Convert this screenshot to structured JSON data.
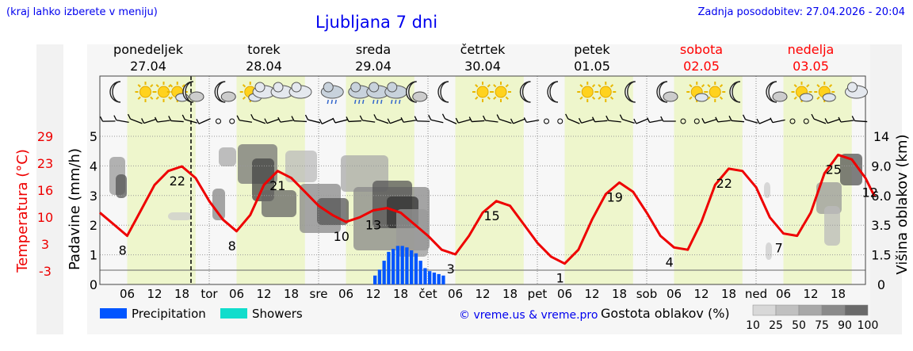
{
  "header": {
    "left_note": "(kraj lahko izberete v meniju)",
    "title": "Ljubljana 7 dni",
    "updated": "Zadnja posodobitev: 27.04.2026 - 20:04"
  },
  "days": [
    {
      "name": "ponedeljek",
      "date": "27.04",
      "abbr": "",
      "weekend": false
    },
    {
      "name": "torek",
      "date": "28.04",
      "abbr": "tor",
      "weekend": false
    },
    {
      "name": "sreda",
      "date": "29.04",
      "abbr": "sre",
      "weekend": false
    },
    {
      "name": "četrtek",
      "date": "30.04",
      "abbr": "čet",
      "weekend": false
    },
    {
      "name": "petek",
      "date": "01.05",
      "abbr": "pet",
      "weekend": false
    },
    {
      "name": "sobota",
      "date": "02.05",
      "abbr": "sob",
      "weekend": true
    },
    {
      "name": "nedelja",
      "date": "03.05",
      "abbr": "ned",
      "weekend": true
    }
  ],
  "hour_ticks": [
    "06",
    "12",
    "18"
  ],
  "axes": {
    "temperature_label": "Temperatura (°C)",
    "temperature_ticks": [
      "29",
      "23",
      "16",
      "10",
      "3",
      "-3"
    ],
    "precip_label": "Padavine (mm/h)",
    "precip_ticks": [
      "5",
      "4",
      "3",
      "2",
      "1",
      "0"
    ],
    "cloud_height_label": "Višina oblakov (km)",
    "cloud_height_ticks": [
      "14",
      "9.0",
      "6.0",
      "3.5",
      "1.5",
      "0"
    ]
  },
  "legend": {
    "precipitation": "Precipitation",
    "showers": "Showers",
    "credit": "© vreme.us & vreme.pro",
    "cloud_density_label": "Gostota oblakov (%)",
    "cloud_density_steps": [
      "10",
      "25",
      "50",
      "75",
      "90",
      "100"
    ]
  },
  "colors": {
    "title": "#0000ee",
    "weekend": "#ff0000",
    "temperature": "#ee0000",
    "precipitation": "#0055ff",
    "showers": "#11ddcc",
    "daylight": "#eef6cc",
    "night": "#f7f7f7"
  },
  "chart_data": {
    "type": "line",
    "x_unit": "hours since 27.04 00:00",
    "temperature": {
      "name": "Temperatura (°C)",
      "points": [
        [
          0,
          12.5
        ],
        [
          3,
          10
        ],
        [
          6,
          7.5
        ],
        [
          9,
          13
        ],
        [
          12,
          18.5
        ],
        [
          15,
          21.5
        ],
        [
          18,
          22.5
        ],
        [
          21,
          20
        ],
        [
          24,
          15
        ],
        [
          27,
          11
        ],
        [
          30,
          8.5
        ],
        [
          33,
          12
        ],
        [
          36,
          18.5
        ],
        [
          39,
          21.5
        ],
        [
          42,
          20
        ],
        [
          45,
          17
        ],
        [
          48,
          14
        ],
        [
          51,
          12
        ],
        [
          54,
          10.5
        ],
        [
          57,
          11.5
        ],
        [
          60,
          13
        ],
        [
          63,
          13.5
        ],
        [
          66,
          12.5
        ],
        [
          69,
          10
        ],
        [
          72,
          7.5
        ],
        [
          75,
          4.5
        ],
        [
          78,
          3.5
        ],
        [
          81,
          7.5
        ],
        [
          84,
          12.5
        ],
        [
          87,
          15
        ],
        [
          90,
          14
        ],
        [
          93,
          10
        ],
        [
          96,
          6
        ],
        [
          99,
          3
        ],
        [
          102,
          1.5
        ],
        [
          105,
          4.5
        ],
        [
          108,
          11
        ],
        [
          111,
          16.5
        ],
        [
          114,
          19
        ],
        [
          117,
          17
        ],
        [
          120,
          12.5
        ],
        [
          123,
          7.5
        ],
        [
          126,
          5
        ],
        [
          129,
          4.5
        ],
        [
          132,
          10.5
        ],
        [
          135,
          18.5
        ],
        [
          138,
          22
        ],
        [
          141,
          21.5
        ],
        [
          144,
          18
        ],
        [
          147,
          11.5
        ],
        [
          150,
          8
        ],
        [
          153,
          7.5
        ],
        [
          156,
          12.5
        ],
        [
          159,
          21
        ],
        [
          162,
          25
        ],
        [
          165,
          24
        ],
        [
          168,
          20
        ],
        [
          170,
          16
        ]
      ],
      "labels": [
        {
          "x": 5,
          "value": "8"
        },
        {
          "x": 17,
          "value": "22"
        },
        {
          "x": 29,
          "value": "8"
        },
        {
          "x": 39,
          "value": "21"
        },
        {
          "x": 53,
          "value": "10"
        },
        {
          "x": 60,
          "value": "13"
        },
        {
          "x": 77,
          "value": "3"
        },
        {
          "x": 86,
          "value": "15"
        },
        {
          "x": 101,
          "value": "1"
        },
        {
          "x": 113,
          "value": "19"
        },
        {
          "x": 125,
          "value": "4"
        },
        {
          "x": 137,
          "value": "22"
        },
        {
          "x": 149,
          "value": "7"
        },
        {
          "x": 161,
          "value": "25"
        },
        {
          "x": 169,
          "value": "12"
        }
      ]
    },
    "precipitation_mm_h": [
      [
        60,
        0.3
      ],
      [
        61,
        0.5
      ],
      [
        62,
        0.8
      ],
      [
        63,
        1.1
      ],
      [
        64,
        1.2
      ],
      [
        65,
        1.3
      ],
      [
        66,
        1.3
      ],
      [
        67,
        1.25
      ],
      [
        68,
        1.15
      ],
      [
        69,
        1.05
      ],
      [
        70,
        0.8
      ],
      [
        71,
        0.55
      ],
      [
        72,
        0.45
      ],
      [
        73,
        0.4
      ],
      [
        74,
        0.35
      ],
      [
        75,
        0.3
      ]
    ],
    "temperature_range": [
      -3,
      29
    ],
    "precip_range": [
      0,
      5
    ],
    "now_hour": 20
  }
}
